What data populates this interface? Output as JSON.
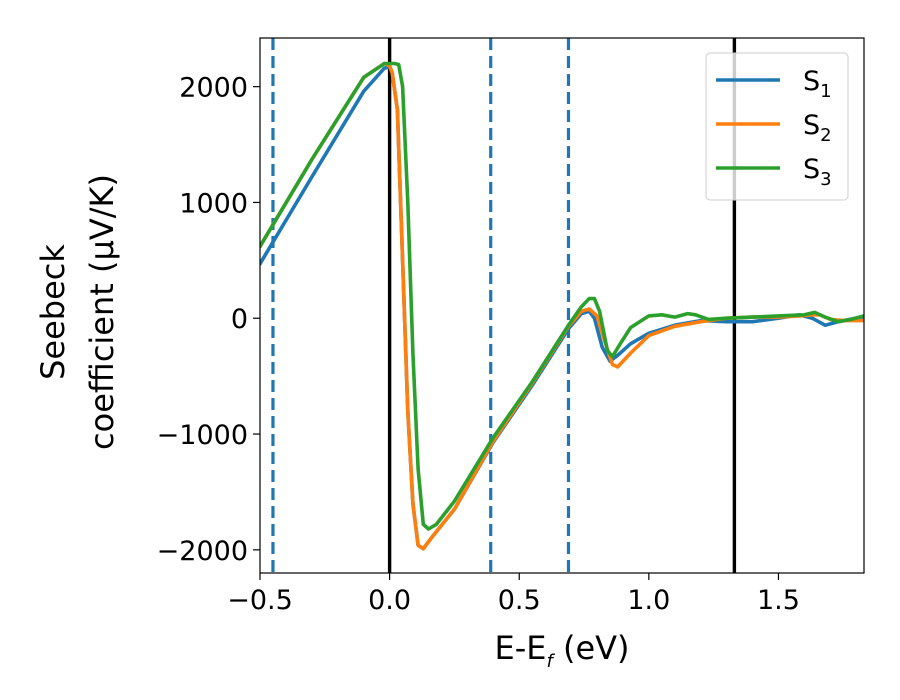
{
  "chart_data": {
    "type": "line",
    "xlabel": {
      "main": "E-E",
      "sub": "f",
      "tail": " (eV)"
    },
    "ylabel": {
      "line1": "Seebeck",
      "line2": "coefficient  (μV/K)"
    },
    "xlim": [
      -0.5,
      1.83
    ],
    "ylim": [
      -2200,
      2420
    ],
    "xticks": [
      {
        "value": -0.5,
        "label": "−0.5"
      },
      {
        "value": 0.0,
        "label": "0.0"
      },
      {
        "value": 0.5,
        "label": "0.5"
      },
      {
        "value": 1.0,
        "label": "1.0"
      },
      {
        "value": 1.5,
        "label": "1.5"
      }
    ],
    "yticks": [
      {
        "value": -2000,
        "label": "−2000"
      },
      {
        "value": -1000,
        "label": "−1000"
      },
      {
        "value": 0,
        "label": "0"
      },
      {
        "value": 1000,
        "label": "1000"
      },
      {
        "value": 2000,
        "label": "2000"
      }
    ],
    "grid": false,
    "legend": {
      "placement": "top-right"
    },
    "series": [
      {
        "name": "S",
        "sub": "1",
        "color": "#1f77b4",
        "points": [
          [
            -0.5,
            470
          ],
          [
            -0.3,
            1220
          ],
          [
            -0.1,
            1960
          ],
          [
            -0.02,
            2160
          ],
          [
            0.0,
            2170
          ],
          [
            0.01,
            2120
          ],
          [
            0.03,
            1800
          ],
          [
            0.05,
            500
          ],
          [
            0.07,
            -800
          ],
          [
            0.09,
            -1600
          ],
          [
            0.11,
            -1960
          ],
          [
            0.13,
            -1990
          ],
          [
            0.16,
            -1900
          ],
          [
            0.25,
            -1650
          ],
          [
            0.4,
            -1070
          ],
          [
            0.55,
            -580
          ],
          [
            0.69,
            -90
          ],
          [
            0.74,
            40
          ],
          [
            0.77,
            60
          ],
          [
            0.79,
            0
          ],
          [
            0.82,
            -250
          ],
          [
            0.85,
            -370
          ],
          [
            0.88,
            -320
          ],
          [
            0.93,
            -220
          ],
          [
            1.0,
            -130
          ],
          [
            1.1,
            -60
          ],
          [
            1.2,
            -20
          ],
          [
            1.3,
            -30
          ],
          [
            1.4,
            -30
          ],
          [
            1.5,
            0
          ],
          [
            1.58,
            30
          ],
          [
            1.63,
            0
          ],
          [
            1.68,
            -60
          ],
          [
            1.73,
            -30
          ],
          [
            1.8,
            0
          ],
          [
            1.83,
            0
          ]
        ]
      },
      {
        "name": "S",
        "sub": "2",
        "color": "#ff7f0e",
        "points": [
          [
            -0.5,
            620
          ],
          [
            -0.3,
            1370
          ],
          [
            -0.1,
            2080
          ],
          [
            -0.02,
            2200
          ],
          [
            0.0,
            2180
          ],
          [
            0.01,
            2120
          ],
          [
            0.03,
            1800
          ],
          [
            0.05,
            500
          ],
          [
            0.07,
            -800
          ],
          [
            0.09,
            -1600
          ],
          [
            0.11,
            -1960
          ],
          [
            0.13,
            -1990
          ],
          [
            0.16,
            -1900
          ],
          [
            0.25,
            -1650
          ],
          [
            0.4,
            -1060
          ],
          [
            0.55,
            -560
          ],
          [
            0.69,
            -70
          ],
          [
            0.74,
            60
          ],
          [
            0.77,
            80
          ],
          [
            0.8,
            20
          ],
          [
            0.83,
            -200
          ],
          [
            0.86,
            -400
          ],
          [
            0.88,
            -420
          ],
          [
            0.93,
            -300
          ],
          [
            1.0,
            -150
          ],
          [
            1.1,
            -70
          ],
          [
            1.2,
            -30
          ],
          [
            1.3,
            0
          ],
          [
            1.4,
            10
          ],
          [
            1.5,
            10
          ],
          [
            1.58,
            20
          ],
          [
            1.63,
            30
          ],
          [
            1.66,
            30
          ],
          [
            1.7,
            -10
          ],
          [
            1.75,
            -20
          ],
          [
            1.83,
            -20
          ]
        ]
      },
      {
        "name": "S",
        "sub": "3",
        "color": "#2ca02c",
        "points": [
          [
            -0.5,
            620
          ],
          [
            -0.3,
            1370
          ],
          [
            -0.1,
            2080
          ],
          [
            -0.02,
            2200
          ],
          [
            0.0,
            2200
          ],
          [
            0.02,
            2200
          ],
          [
            0.035,
            2190
          ],
          [
            0.05,
            2000
          ],
          [
            0.07,
            1000
          ],
          [
            0.09,
            -300
          ],
          [
            0.11,
            -1300
          ],
          [
            0.13,
            -1780
          ],
          [
            0.15,
            -1820
          ],
          [
            0.18,
            -1780
          ],
          [
            0.25,
            -1580
          ],
          [
            0.4,
            -1030
          ],
          [
            0.55,
            -550
          ],
          [
            0.69,
            -60
          ],
          [
            0.74,
            100
          ],
          [
            0.77,
            170
          ],
          [
            0.79,
            170
          ],
          [
            0.81,
            60
          ],
          [
            0.84,
            -280
          ],
          [
            0.86,
            -330
          ],
          [
            0.89,
            -220
          ],
          [
            0.93,
            -80
          ],
          [
            1.0,
            20
          ],
          [
            1.05,
            30
          ],
          [
            1.1,
            10
          ],
          [
            1.15,
            40
          ],
          [
            1.18,
            30
          ],
          [
            1.23,
            -10
          ],
          [
            1.3,
            0
          ],
          [
            1.4,
            10
          ],
          [
            1.5,
            20
          ],
          [
            1.6,
            30
          ],
          [
            1.64,
            50
          ],
          [
            1.68,
            10
          ],
          [
            1.73,
            -30
          ],
          [
            1.78,
            -10
          ],
          [
            1.83,
            20
          ]
        ]
      }
    ],
    "vlines": [
      {
        "x": 0.0,
        "style": "solid",
        "color": "#000000"
      },
      {
        "x": 1.33,
        "style": "solid",
        "color": "#000000"
      },
      {
        "x": -0.45,
        "style": "dashed",
        "color": "#1f77b4"
      },
      {
        "x": 0.39,
        "style": "dashed",
        "color": "#1f77b4"
      },
      {
        "x": 0.69,
        "style": "dashed",
        "color": "#1f77b4"
      }
    ]
  }
}
